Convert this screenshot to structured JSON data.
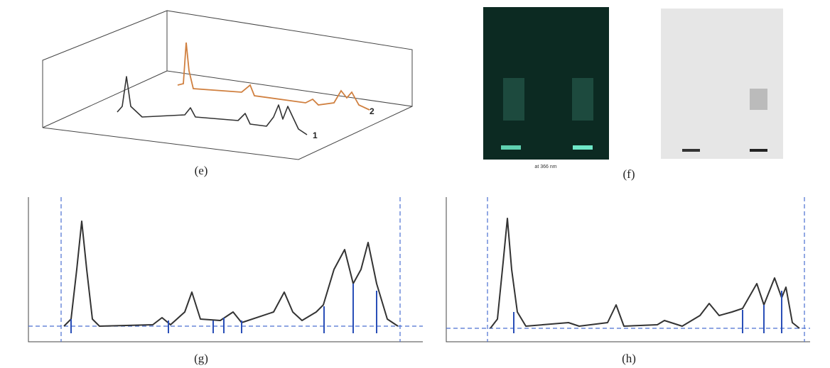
{
  "panels": [
    {
      "label": "(e)",
      "traces": [
        "1",
        "2"
      ]
    },
    {
      "label": "(f)",
      "captions": [
        "at 366 nm"
      ]
    },
    {
      "label": "(g)"
    },
    {
      "label": "(h)"
    }
  ]
}
